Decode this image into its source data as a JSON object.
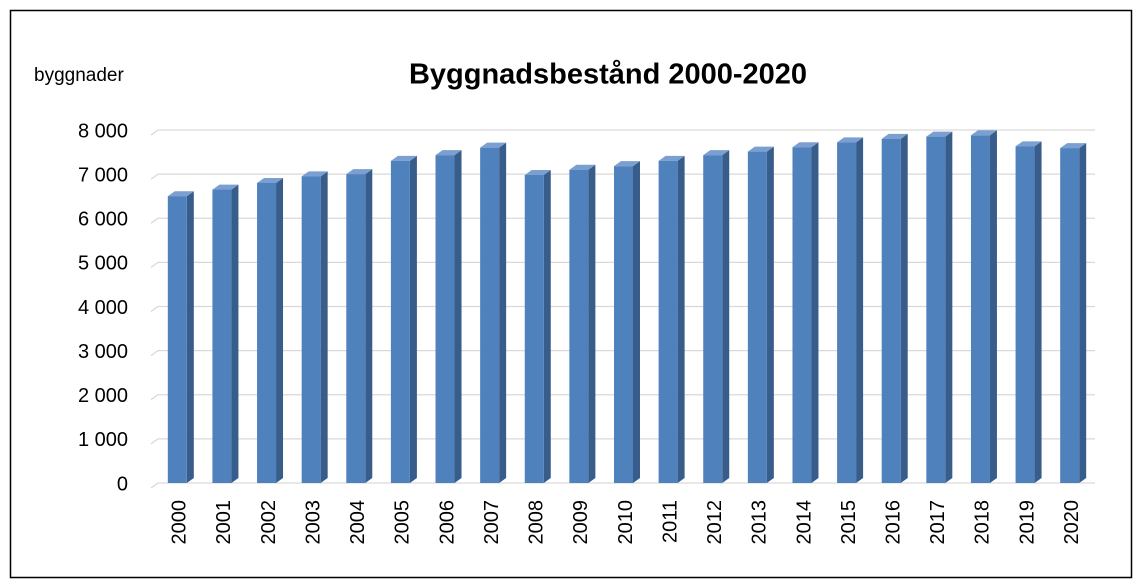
{
  "chart_data": {
    "type": "bar",
    "title": "Byggnadsbestånd 2000-2020",
    "y_label": "byggnader",
    "categories": [
      "2000",
      "2001",
      "2002",
      "2003",
      "2004",
      "2005",
      "2006",
      "2007",
      "2008",
      "2009",
      "2010",
      "2011",
      "2012",
      "2013",
      "2014",
      "2015",
      "2016",
      "2017",
      "2018",
      "2019",
      "2020"
    ],
    "values": [
      6500,
      6650,
      6800,
      6950,
      7000,
      7300,
      7430,
      7600,
      6980,
      7100,
      7180,
      7300,
      7430,
      7510,
      7610,
      7720,
      7800,
      7850,
      7880,
      7630,
      7590
    ],
    "color": "#4f81bd",
    "ylim": [
      0,
      8000
    ],
    "yticks": [
      0,
      {
        "value": 1000,
        "label": "1 000"
      },
      {
        "value": 2000,
        "label": "2 000"
      },
      {
        "value": 3000,
        "label": "3 000"
      },
      {
        "value": 4000,
        "label": "4 000"
      },
      {
        "value": 5000,
        "label": "5 000"
      },
      {
        "value": 6000,
        "label": "6 000"
      },
      {
        "value": 7000,
        "label": "7 000"
      },
      {
        "value": 8000,
        "label": "8 000"
      }
    ],
    "grid": true
  }
}
